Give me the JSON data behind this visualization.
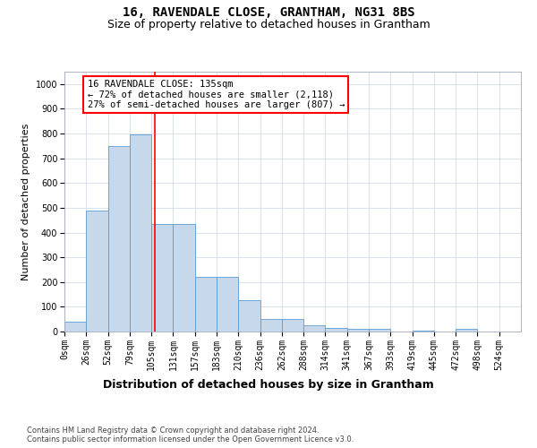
{
  "title": "16, RAVENDALE CLOSE, GRANTHAM, NG31 8BS",
  "subtitle": "Size of property relative to detached houses in Grantham",
  "xlabel": "Distribution of detached houses by size in Grantham",
  "ylabel": "Number of detached properties",
  "bin_labels": [
    "0sqm",
    "26sqm",
    "52sqm",
    "79sqm",
    "105sqm",
    "131sqm",
    "157sqm",
    "183sqm",
    "210sqm",
    "236sqm",
    "262sqm",
    "288sqm",
    "314sqm",
    "341sqm",
    "367sqm",
    "393sqm",
    "419sqm",
    "445sqm",
    "472sqm",
    "498sqm",
    "524sqm"
  ],
  "bar_heights": [
    40,
    490,
    750,
    795,
    435,
    435,
    220,
    220,
    125,
    50,
    50,
    25,
    15,
    10,
    10,
    0,
    5,
    0,
    10,
    0,
    0
  ],
  "bar_color": "#c8d8eb",
  "bar_edge_color": "#5b9bd5",
  "annotation_text": "16 RAVENDALE CLOSE: 135sqm\n← 72% of detached houses are smaller (2,118)\n27% of semi-detached houses are larger (807) →",
  "annotation_box_color": "white",
  "annotation_box_edge_color": "red",
  "vline_color": "red",
  "ylim": [
    0,
    1050
  ],
  "yticks": [
    0,
    100,
    200,
    300,
    400,
    500,
    600,
    700,
    800,
    900,
    1000
  ],
  "footer_line1": "Contains HM Land Registry data © Crown copyright and database right 2024.",
  "footer_line2": "Contains public sector information licensed under the Open Government Licence v3.0.",
  "bg_color": "white",
  "grid_color": "#d5dce8",
  "title_fontsize": 10,
  "subtitle_fontsize": 9,
  "tick_fontsize": 7,
  "ylabel_fontsize": 8,
  "xlabel_fontsize": 9,
  "annotation_fontsize": 7.5,
  "footer_fontsize": 6
}
